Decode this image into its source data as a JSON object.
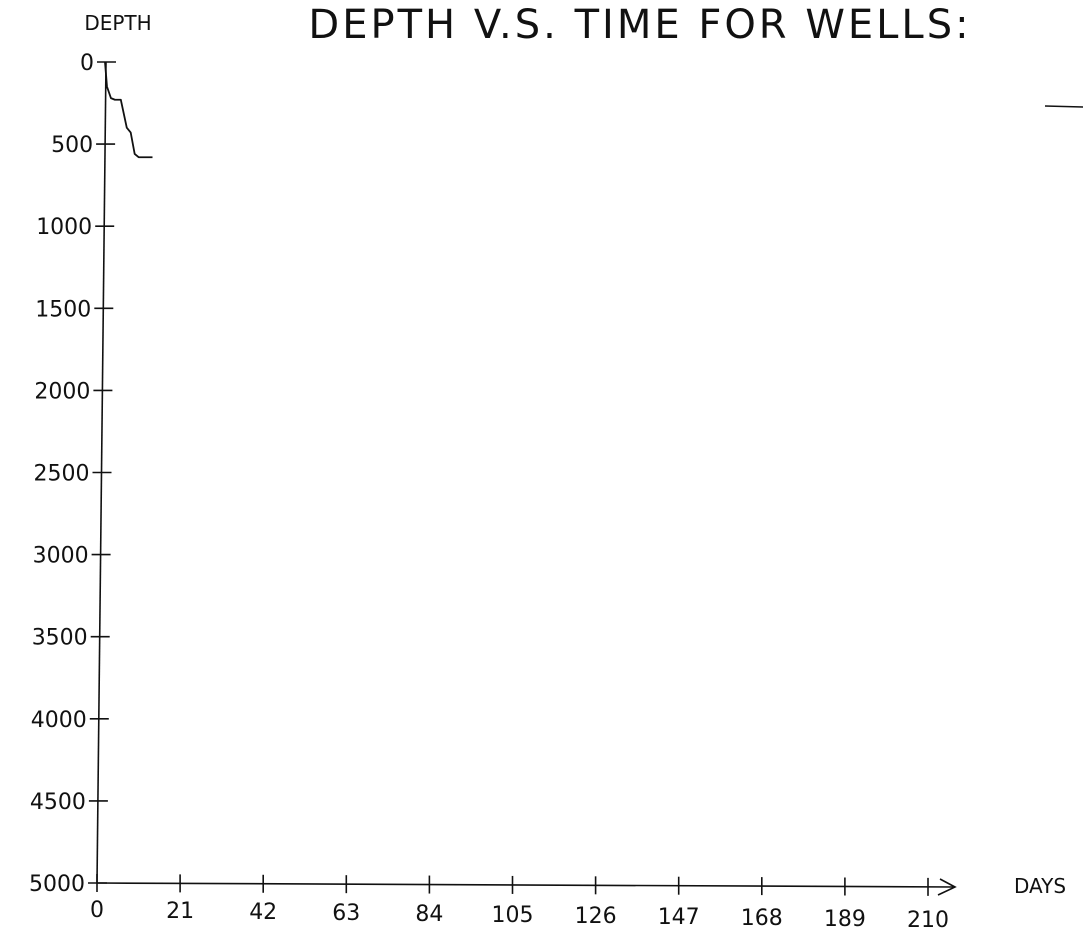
{
  "chart_data": {
    "type": "line",
    "title": "DEPTH V.S. TIME FOR WELLS:",
    "xlabel": "DAYS",
    "ylabel": "DEPTH",
    "xlim": [
      0,
      210
    ],
    "ylim": [
      0,
      5000
    ],
    "y_inverted": true,
    "grid": false,
    "x_ticks": [
      0,
      21,
      42,
      63,
      84,
      105,
      126,
      147,
      168,
      189,
      210
    ],
    "y_ticks": [
      0,
      500,
      1000,
      1500,
      2000,
      2500,
      3000,
      3500,
      4000,
      4500,
      5000
    ],
    "series": [
      {
        "x": [
          0,
          0.5,
          1.5,
          2.5,
          4,
          5.5,
          6.5,
          7.5,
          8.5,
          12
        ],
        "y": [
          0,
          150,
          220,
          230,
          230,
          400,
          430,
          560,
          580,
          580
        ]
      }
    ],
    "colors": {
      "ink": "#111111",
      "background": "#ffffff"
    }
  }
}
